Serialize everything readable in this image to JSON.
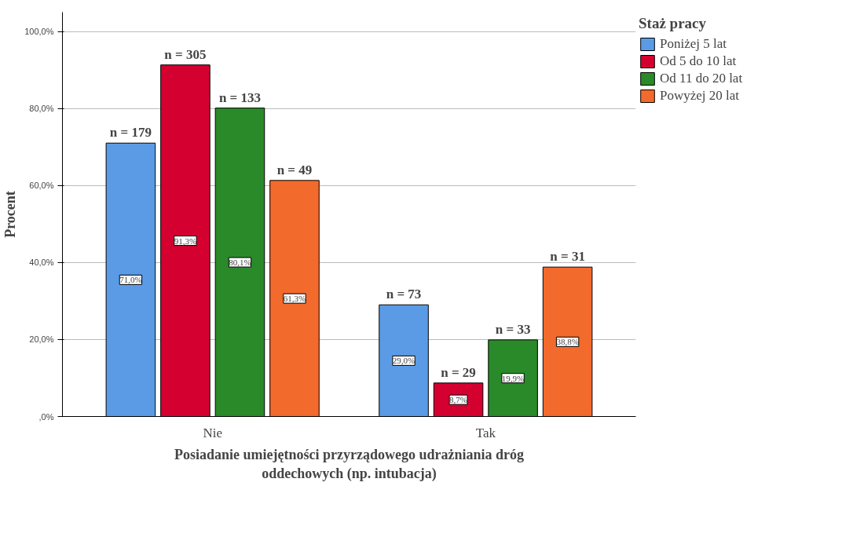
{
  "chart_data": {
    "type": "bar",
    "xlabel": "Posiadanie umiejętności przyrządowego udrażniania dróg\noddechowych (np. intubacja)",
    "ylabel": "Procent",
    "legend_title": "Staż pracy",
    "categories": [
      "Nie",
      "Tak"
    ],
    "series": [
      {
        "name": "Poniżej 5 lat",
        "color": "#5b9be6",
        "values": [
          71.0,
          29.0
        ],
        "value_labels": [
          "71,0%",
          "29,0%"
        ]
      },
      {
        "name": "Od 5 do 10 lat",
        "color": "#d40030",
        "values": [
          91.3,
          8.7
        ],
        "value_labels": [
          "91,3%",
          "8,7%"
        ]
      },
      {
        "name": "Od 11 do 20 lat",
        "color": "#2a8a2a",
        "values": [
          80.1,
          19.9
        ],
        "value_labels": [
          "80,1%",
          "19,9%"
        ]
      },
      {
        "name": "Powyżej 20 lat",
        "color": "#f26a2c",
        "values": [
          61.3,
          38.8
        ],
        "value_labels": [
          "61,3%",
          "38,8%"
        ]
      }
    ],
    "annotations": [
      "n = 179",
      "n = 305",
      "n = 133",
      "n = 49",
      "n = 73",
      "n = 29",
      "n = 33",
      "n = 31"
    ],
    "ylim": [
      0,
      105
    ],
    "yticks": [
      {
        "value": 0,
        "label": ",0%"
      },
      {
        "value": 20,
        "label": "20,0%"
      },
      {
        "value": 40,
        "label": "40,0%"
      },
      {
        "value": 60,
        "label": "60,0%"
      },
      {
        "value": 80,
        "label": "80,0%"
      },
      {
        "value": 100,
        "label": "100,0%"
      }
    ],
    "grid": "y",
    "legend": "right"
  }
}
